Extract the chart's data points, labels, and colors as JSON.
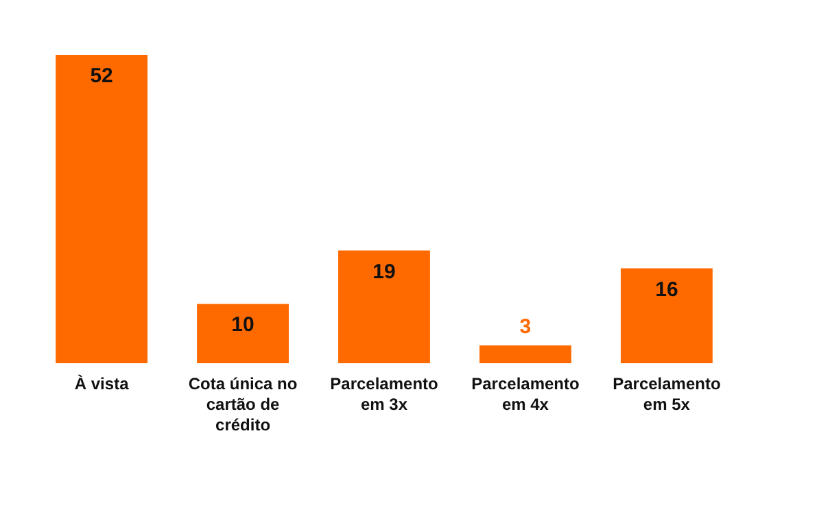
{
  "chart_data": {
    "type": "bar",
    "categories": [
      "À vista",
      "Cota única no cartão de crédito",
      "Parcelamento em 3x",
      "Parcelamento em 4x",
      "Parcelamento em 5x"
    ],
    "values": [
      52,
      10,
      19,
      3,
      16
    ],
    "color": "#ff6a00",
    "data_labels": true
  }
}
